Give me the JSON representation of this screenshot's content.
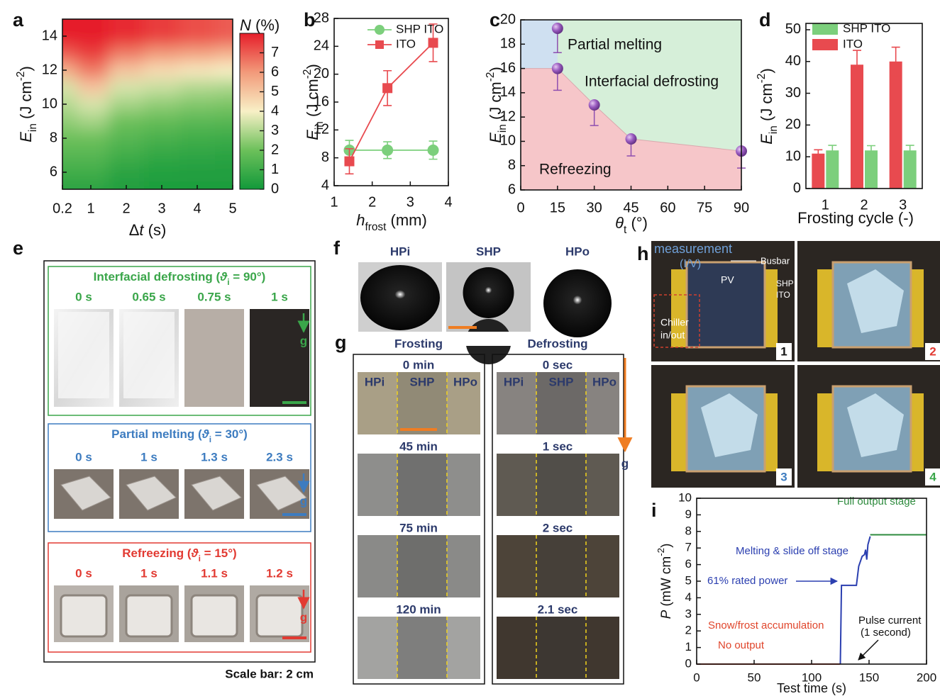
{
  "panel_labels": [
    "a",
    "b",
    "c",
    "d",
    "e",
    "f",
    "g",
    "h",
    "i"
  ],
  "chart_data": [
    {
      "type": "heatmap",
      "xlabel": [
        "Δ",
        "t",
        " (s)"
      ],
      "ylabel": [
        "E",
        "in",
        " (J cm",
        "-2",
        ")"
      ],
      "x": [
        0.2,
        1,
        2,
        3,
        4,
        5
      ],
      "y": [
        5,
        6,
        7,
        8,
        9,
        10,
        11,
        12,
        13,
        14
      ],
      "z": [
        [
          0.5,
          1,
          1.5,
          2,
          2.5,
          3,
          3.5,
          5.5,
          7,
          8
        ],
        [
          0.5,
          1,
          1.5,
          2,
          2.8,
          3.5,
          5,
          6.5,
          7.5,
          8
        ],
        [
          0.3,
          0.5,
          1,
          1.5,
          2,
          2.8,
          3.5,
          5,
          6.5,
          7.8
        ],
        [
          0.2,
          0.4,
          0.7,
          1.2,
          1.8,
          2.5,
          3.3,
          4.5,
          6,
          7.5
        ],
        [
          0.2,
          0.3,
          0.6,
          1,
          1.6,
          2.3,
          3,
          4.2,
          5.8,
          7.2
        ],
        [
          0.2,
          0.3,
          0.5,
          0.9,
          1.5,
          2.2,
          2.9,
          4,
          5.5,
          7
        ]
      ],
      "xlim": [
        0.2,
        5
      ],
      "xticks": [
        0.2,
        1,
        2,
        3,
        4,
        5
      ],
      "ylim": [
        5,
        15
      ],
      "yticks": [
        6,
        8,
        10,
        12,
        14
      ],
      "colorbar": {
        "label": [
          "N",
          " (%)"
        ],
        "clim": [
          0,
          8
        ],
        "ticks": [
          0,
          1,
          2,
          3,
          4,
          5,
          6,
          7
        ],
        "colors": [
          "#12993a",
          "#6cc05a",
          "#f8f0c6",
          "#f29a7a",
          "#e61e2a"
        ]
      }
    },
    {
      "type": "line",
      "xlabel": [
        "h",
        "frost",
        " (mm)"
      ],
      "ylabel": [
        "E",
        "in",
        " (J cm",
        "-2",
        ")"
      ],
      "x": [
        1.4,
        2.4,
        3.6
      ],
      "series": [
        {
          "name": "SHP ITO",
          "color": "#7ccf7c",
          "marker": "circle",
          "values": [
            9.1,
            9.1,
            9.1
          ],
          "errors": [
            1.4,
            1.2,
            1.3
          ]
        },
        {
          "name": "ITO",
          "color": "#e84a4f",
          "marker": "square",
          "values": [
            7.5,
            18,
            24.5
          ],
          "errors": [
            1.8,
            2.5,
            2.7
          ]
        }
      ],
      "xlim": [
        1,
        4
      ],
      "xticks": [
        1,
        2,
        3,
        4
      ],
      "ylim": [
        4,
        28
      ],
      "yticks": [
        4,
        8,
        12,
        16,
        20,
        24,
        28
      ]
    },
    {
      "type": "region",
      "xlabel": [
        "θ",
        "t",
        " (°)"
      ],
      "ylabel": [
        "E",
        "in",
        " (J cm",
        "-2",
        ")"
      ],
      "x": [
        15,
        15,
        30,
        45,
        90
      ],
      "values": [
        19.3,
        16,
        13,
        10.2,
        9.2
      ],
      "errors": [
        2,
        1.8,
        1.7,
        1.4,
        1.4
      ],
      "color": "#8e4fb0",
      "boundary": {
        "x": [
          0,
          15,
          30,
          45,
          90
        ],
        "y": [
          16,
          16,
          13,
          10.2,
          9.2
        ]
      },
      "melting_region": {
        "xmax": 15,
        "ymin": 16
      },
      "region_colors": [
        "#cfe0f1",
        "#d6efd9",
        "#f6c6c9"
      ],
      "annotations": [
        "Partial melting",
        "Interfacial defrosting",
        "Refreezing"
      ],
      "xlim": [
        0,
        90
      ],
      "xticks": [
        0,
        15,
        30,
        45,
        60,
        75,
        90
      ],
      "ylim": [
        6,
        20
      ],
      "yticks": [
        6,
        8,
        10,
        12,
        14,
        16,
        18,
        20
      ]
    },
    {
      "type": "bar",
      "xlabel": "Frosting cycle (-)",
      "ylabel": [
        "E",
        "in",
        " (J cm",
        "-2",
        ")"
      ],
      "categories": [
        "1",
        "2",
        "3"
      ],
      "series": [
        {
          "name": "SHP ITO",
          "color": "#7ccf7c",
          "values": [
            12,
            12,
            12
          ],
          "errors": [
            1.6,
            1.5,
            1.6
          ]
        },
        {
          "name": "ITO",
          "color": "#e84a4f",
          "values": [
            11,
            39,
            40
          ],
          "errors": [
            1.2,
            4.5,
            4.5
          ]
        }
      ],
      "ylim": [
        0,
        52
      ],
      "yticks": [
        0,
        10,
        20,
        30,
        40,
        50
      ]
    },
    {
      "type": "line",
      "xlabel": "Test time (s)",
      "ylabel": [
        "P",
        " (mW cm",
        "-2",
        ")"
      ],
      "series": [
        {
          "color": "#e0452b",
          "x": [
            0,
            125
          ],
          "values": [
            0,
            0
          ]
        },
        {
          "color": "#2b3fb0",
          "x": [
            125,
            126,
            139,
            141,
            144,
            146,
            147,
            148,
            149,
            151
          ],
          "values": [
            0,
            4.75,
            4.75,
            5.9,
            6.5,
            6.6,
            6.9,
            6.3,
            7.2,
            7.7
          ]
        },
        {
          "color": "#2e8b3e",
          "x": [
            151,
            200
          ],
          "values": [
            7.8,
            7.8
          ]
        }
      ],
      "annotations": [
        "Full output stage",
        "Melting & slide off stage",
        "61% rated power",
        "Snow/frost accumulation",
        "No output",
        "Pulse current",
        "(1 second)"
      ],
      "xlim": [
        0,
        200
      ],
      "xticks": [
        0,
        50,
        100,
        150,
        200
      ],
      "ylim": [
        0,
        10
      ],
      "yticks": [
        0,
        1,
        2,
        3,
        4,
        5,
        6,
        7,
        8,
        9,
        10
      ]
    }
  ],
  "photos": {
    "e": {
      "rows": [
        {
          "title": [
            "Interfacial defrosting (",
            "ϑ",
            "i",
            " = 90°)"
          ],
          "times": [
            "0 s",
            "0.65 s",
            "0.75 s",
            "1 s"
          ],
          "gravity": "g"
        },
        {
          "title": [
            "Partial melting (",
            "ϑ",
            "i",
            " = 30°)"
          ],
          "times": [
            "0 s",
            "1 s",
            "1.3 s",
            "2.3 s"
          ],
          "gravity": "g"
        },
        {
          "title": [
            "Refreezing (",
            "ϑ",
            "i",
            " = 15°)"
          ],
          "times": [
            "0 s",
            "1 s",
            "1.1 s",
            "1.2 s"
          ],
          "gravity": "g"
        }
      ],
      "scale_note": "Scale bar: 2 cm"
    },
    "f": {
      "labels": [
        "HPi",
        "SHP",
        "HPo"
      ]
    },
    "g": {
      "columns": [
        {
          "title": "Frosting",
          "times": [
            "0 min",
            "45 min",
            "75 min",
            "120 min"
          ]
        },
        {
          "title": "Defrosting",
          "times": [
            "0 sec",
            "1 sec",
            "2 sec",
            "2.1 sec"
          ]
        }
      ],
      "regions": [
        "HPi",
        "SHP",
        "HPo"
      ],
      "gravity": "g"
    },
    "h": {
      "callouts": [
        "measurement",
        "(I/V)",
        "Busbar",
        "PV",
        "SHP",
        "ITO",
        "Chiller",
        "in/out"
      ],
      "numbers": [
        "1",
        "2",
        "3",
        "4"
      ]
    }
  }
}
